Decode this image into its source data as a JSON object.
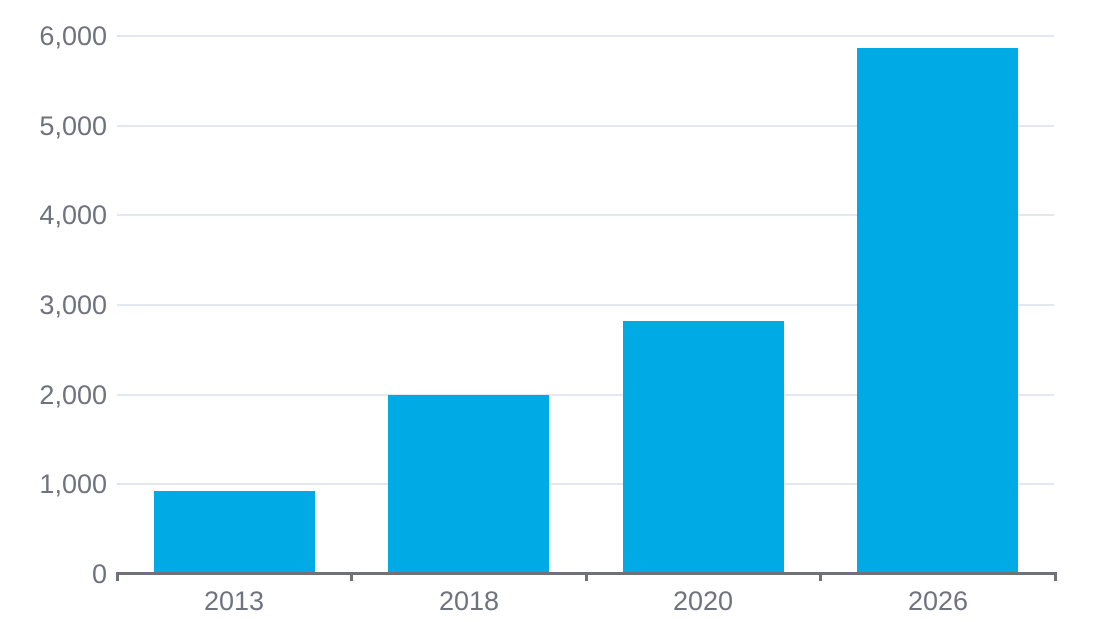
{
  "chart_data": {
    "type": "bar",
    "title": "",
    "xlabel": "",
    "ylabel": "",
    "categories": [
      "2013",
      "2018",
      "2020",
      "2026"
    ],
    "values": [
      930,
      2000,
      2820,
      5870
    ],
    "ylim": [
      0,
      6000
    ],
    "ytick_interval": 1000,
    "ytick_labels": [
      "0",
      "1,000",
      "2,000",
      "3,000",
      "4,000",
      "5,000",
      "6,000"
    ],
    "grid": true,
    "legend": false,
    "gridline_style": "solid horizontal lines, no vertical gridlines",
    "colors": {
      "bar": "#00AAE4",
      "gridline": "#E2E7F1",
      "axis": "#6E7177",
      "label": "#6F7380",
      "background": "#FFFFFF"
    }
  }
}
